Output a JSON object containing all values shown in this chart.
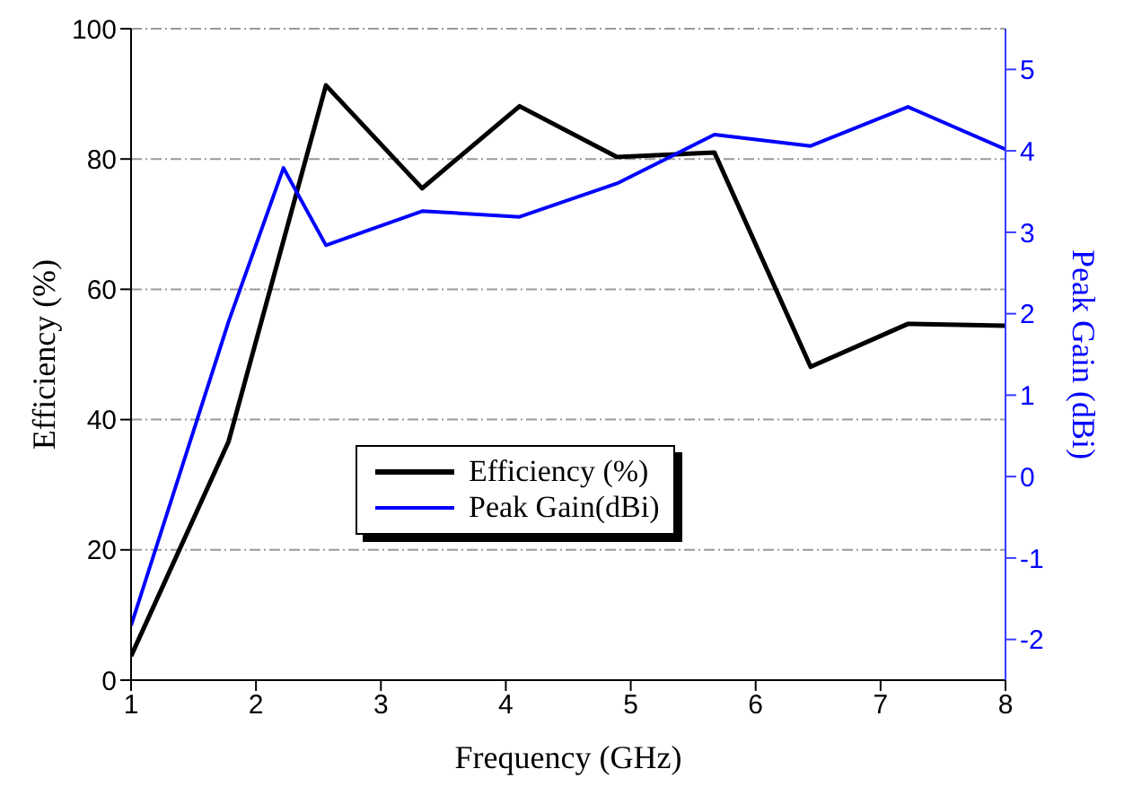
{
  "chart_data": {
    "type": "line",
    "xlabel": "Frequency (GHz)",
    "ylabel": "Efficiency (%)",
    "y2label": "Peak Gain (dBi)",
    "xlim": [
      1,
      8
    ],
    "xticks": [
      1,
      2,
      3,
      4,
      5,
      6,
      7,
      8
    ],
    "ylim": [
      0,
      100
    ],
    "yticks": [
      0,
      20,
      40,
      60,
      80,
      100
    ],
    "y2lim": [
      -2.5,
      5.5
    ],
    "y2ticks": [
      -2,
      -1,
      0,
      1,
      2,
      3,
      4,
      5
    ],
    "grid": "y",
    "legend": "bottom",
    "marker": "none",
    "line_style": "solid",
    "series": [
      {
        "name": "Efficiency (%)",
        "color": "#000000",
        "x": [
          1,
          1.78,
          2.56,
          3.33,
          4.11,
          4.89,
          5.67,
          6.44,
          7.22,
          8
        ],
        "values": [
          3.7,
          36.6,
          91.3,
          75.5,
          88.1,
          80.3,
          81,
          48.1,
          54.7,
          54.4
        ]
      },
      {
        "name": "Peak Gain(dBi)",
        "color": "#0000ff",
        "axis": "y2",
        "x": [
          1,
          1.78,
          2.22,
          2.56,
          3.33,
          4.11,
          4.89,
          5.67,
          6.44,
          7.22,
          8
        ],
        "values": [
          -1.83,
          1.9,
          3.79,
          2.84,
          3.26,
          3.19,
          3.6,
          4.2,
          4.06,
          4.54,
          4.02
        ]
      }
    ]
  }
}
